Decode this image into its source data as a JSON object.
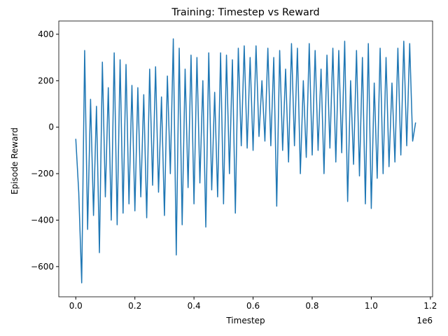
{
  "chart_data": {
    "type": "line",
    "title": "Training: Timestep vs Reward",
    "x_label": "Timestep",
    "y_label": "Episode Reward",
    "x_offset_label": "1e6",
    "xlim": [
      -57500,
      1207500
    ],
    "ylim": [
      -730,
      457
    ],
    "xticks": [
      {
        "value": 0,
        "label": "0.0"
      },
      {
        "value": 200000,
        "label": "0.2"
      },
      {
        "value": 400000,
        "label": "0.4"
      },
      {
        "value": 600000,
        "label": "0.6"
      },
      {
        "value": 800000,
        "label": "0.8"
      },
      {
        "value": 1000000,
        "label": "1.0"
      },
      {
        "value": 1200000,
        "label": "1.2"
      }
    ],
    "yticks": [
      {
        "value": -600,
        "label": "−600"
      },
      {
        "value": -400,
        "label": "−400"
      },
      {
        "value": -200,
        "label": "−200"
      },
      0,
      200,
      400
    ],
    "x": [
      0,
      10000,
      20000,
      30000,
      40000,
      50000,
      60000,
      70000,
      80000,
      90000,
      100000,
      110000,
      120000,
      130000,
      140000,
      150000,
      160000,
      170000,
      180000,
      190000,
      200000,
      210000,
      220000,
      230000,
      240000,
      250000,
      260000,
      270000,
      280000,
      290000,
      300000,
      310000,
      320000,
      330000,
      340000,
      350000,
      360000,
      370000,
      380000,
      390000,
      400000,
      410000,
      420000,
      430000,
      440000,
      450000,
      460000,
      470000,
      480000,
      490000,
      500000,
      510000,
      520000,
      530000,
      540000,
      550000,
      560000,
      570000,
      580000,
      590000,
      600000,
      610000,
      620000,
      630000,
      640000,
      650000,
      660000,
      670000,
      680000,
      690000,
      700000,
      710000,
      720000,
      730000,
      740000,
      750000,
      760000,
      770000,
      780000,
      790000,
      800000,
      810000,
      820000,
      830000,
      840000,
      850000,
      860000,
      870000,
      880000,
      890000,
      900000,
      910000,
      920000,
      930000,
      940000,
      950000,
      960000,
      970000,
      980000,
      990000,
      1000000,
      1010000,
      1020000,
      1030000,
      1040000,
      1050000,
      1060000,
      1070000,
      1080000,
      1090000,
      1100000,
      1110000,
      1120000,
      1130000,
      1140000,
      1150000
    ],
    "series": [
      {
        "color": "#1f77b4",
        "values": [
          -50,
          -280,
          -670,
          330,
          -440,
          120,
          -380,
          90,
          -540,
          280,
          -300,
          170,
          -400,
          320,
          -420,
          290,
          -370,
          270,
          -330,
          180,
          -360,
          170,
          -300,
          140,
          -390,
          250,
          -250,
          260,
          -280,
          130,
          -380,
          220,
          -200,
          380,
          -550,
          340,
          -420,
          250,
          -260,
          310,
          -330,
          300,
          -240,
          200,
          -430,
          320,
          -270,
          150,
          -300,
          320,
          -330,
          310,
          -200,
          290,
          -370,
          340,
          -80,
          350,
          -90,
          300,
          -100,
          350,
          -40,
          200,
          -60,
          340,
          -80,
          300,
          -340,
          330,
          -100,
          250,
          -150,
          360,
          -80,
          340,
          -200,
          200,
          -130,
          360,
          -120,
          330,
          -100,
          250,
          -200,
          310,
          -90,
          340,
          -150,
          330,
          -110,
          370,
          -320,
          200,
          -160,
          330,
          -210,
          300,
          -330,
          360,
          -350,
          190,
          -220,
          340,
          -200,
          300,
          -170,
          190,
          -150,
          340,
          -120,
          370,
          -80,
          360,
          -60,
          20
        ]
      }
    ]
  }
}
